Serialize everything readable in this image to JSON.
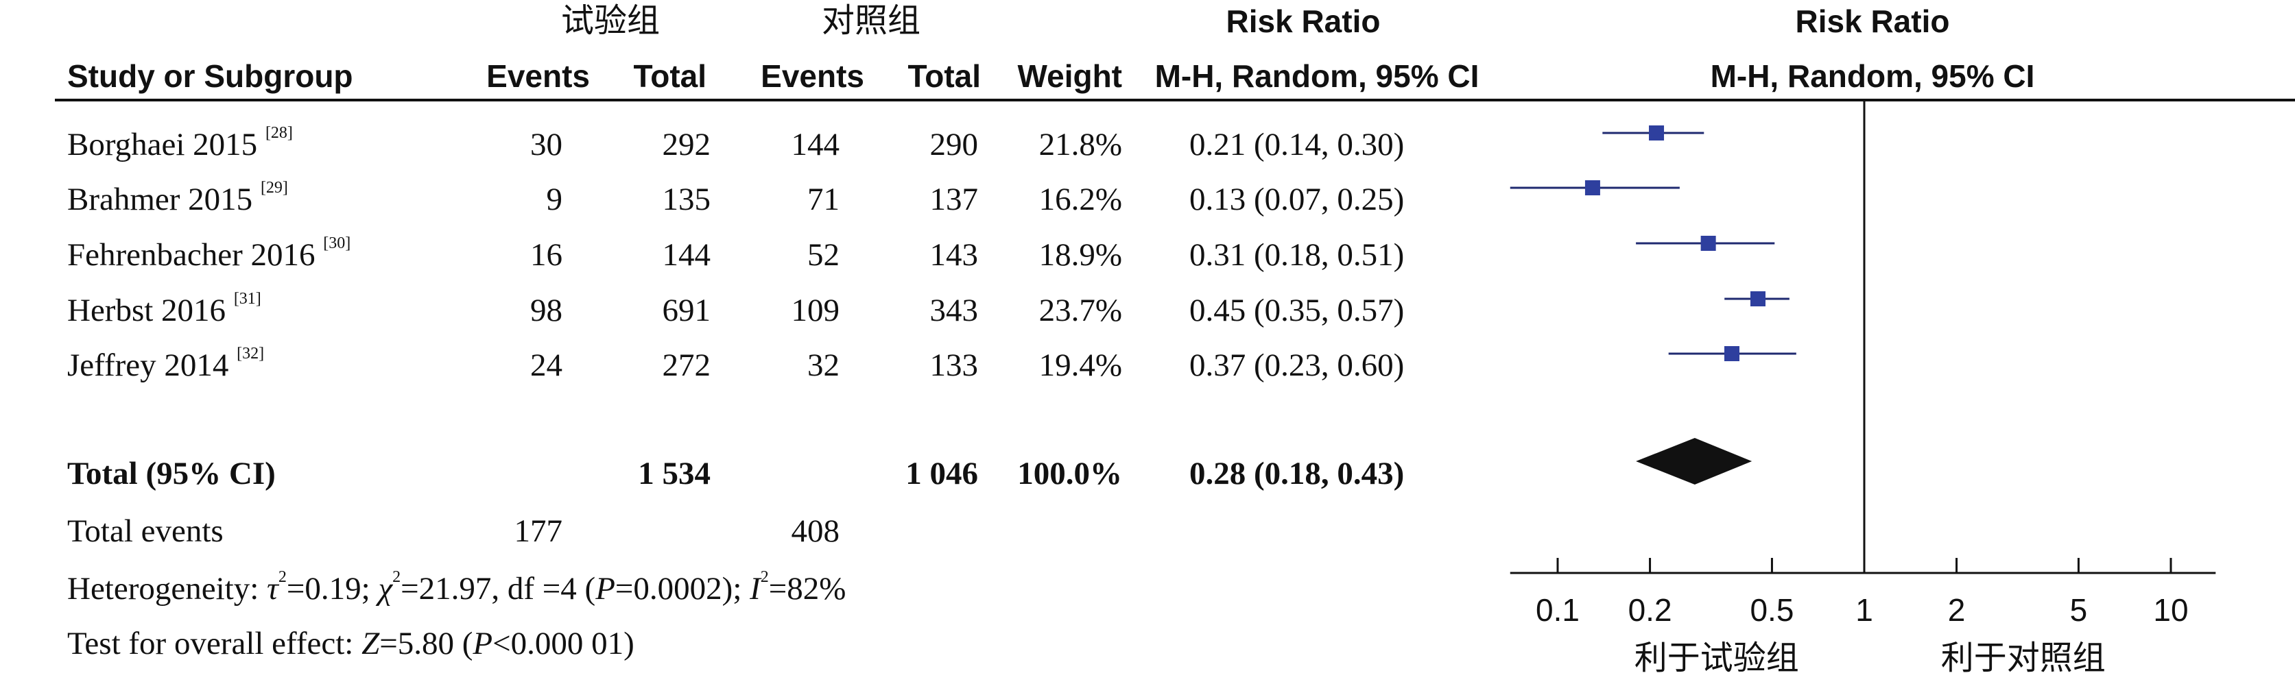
{
  "groups": {
    "experimental": "试验组",
    "control": "对照组"
  },
  "header": {
    "study_col": "Study or Subgroup",
    "events": "Events",
    "total": "Total",
    "weight": "Weight",
    "rr_title": "Risk Ratio",
    "rr_method": "M-H, Random, 95% CI"
  },
  "studies": [
    {
      "name": "Borghaei 2015",
      "ref": "[28]",
      "exp_events": "30",
      "exp_total": "292",
      "ctl_events": "144",
      "ctl_total": "290",
      "weight": "21.8%",
      "ci_text": "0.21 (0.14, 0.30)"
    },
    {
      "name": "Brahmer 2015",
      "ref": "[29]",
      "exp_events": "9",
      "exp_total": "135",
      "ctl_events": "71",
      "ctl_total": "137",
      "weight": "16.2%",
      "ci_text": "0.13 (0.07, 0.25)"
    },
    {
      "name": "Fehrenbacher 2016",
      "ref": "[30]",
      "exp_events": "16",
      "exp_total": "144",
      "ctl_events": "52",
      "ctl_total": "143",
      "weight": "18.9%",
      "ci_text": "0.31 (0.18, 0.51)"
    },
    {
      "name": "Herbst 2016",
      "ref": "[31]",
      "exp_events": "98",
      "exp_total": "691",
      "ctl_events": "109",
      "ctl_total": "343",
      "weight": "23.7%",
      "ci_text": "0.45 (0.35, 0.57)"
    },
    {
      "name": "Jeffrey 2014",
      "ref": "[32]",
      "exp_events": "24",
      "exp_total": "272",
      "ctl_events": "32",
      "ctl_total": "133",
      "weight": "19.4%",
      "ci_text": "0.37 (0.23, 0.60)"
    }
  ],
  "total": {
    "label": "Total (95% CI)",
    "exp_total": "1 534",
    "ctl_total": "1 046",
    "weight": "100.0%",
    "ci_text": "0.28 (0.18, 0.43)"
  },
  "total_events": {
    "label": "Total events",
    "exp": "177",
    "ctl": "408"
  },
  "heterogeneity": {
    "prefix": "Heterogeneity: ",
    "tau": "τ",
    "tau_val": "=0.19; ",
    "chi": "χ",
    "chi_val": "=21.97, df =4 (",
    "p": "P",
    "p_val": "=0.0002); ",
    "i": "I",
    "i_val": "=82%",
    "sq": "2"
  },
  "overall_effect": {
    "prefix": "Test for overall effect: ",
    "z": "Z",
    "z_val": "=5.80 (",
    "p": "P",
    "p_val": "<0.000 01)"
  },
  "chart_data": {
    "type": "forest",
    "scale": "log",
    "xticks": [
      0.1,
      0.2,
      0.5,
      1,
      2,
      5,
      10
    ],
    "xtick_labels": [
      "0.1",
      "0.2",
      "0.5",
      "1",
      "2",
      "5",
      "10"
    ],
    "xrange": [
      0.07,
      14
    ],
    "reference_line": 1,
    "xlabel_left": "利于试验组",
    "xlabel_right": "利于对照组",
    "marker_color": "#2e3f9e",
    "studies": [
      {
        "name": "Borghaei 2015",
        "rr": 0.21,
        "lo": 0.14,
        "hi": 0.3
      },
      {
        "name": "Brahmer 2015",
        "rr": 0.13,
        "lo": 0.07,
        "hi": 0.25
      },
      {
        "name": "Fehrenbacher 2016",
        "rr": 0.31,
        "lo": 0.18,
        "hi": 0.51
      },
      {
        "name": "Herbst 2016",
        "rr": 0.45,
        "lo": 0.35,
        "hi": 0.57
      },
      {
        "name": "Jeffrey 2014",
        "rr": 0.37,
        "lo": 0.23,
        "hi": 0.6
      }
    ],
    "pooled": {
      "rr": 0.28,
      "lo": 0.18,
      "hi": 0.43
    }
  }
}
